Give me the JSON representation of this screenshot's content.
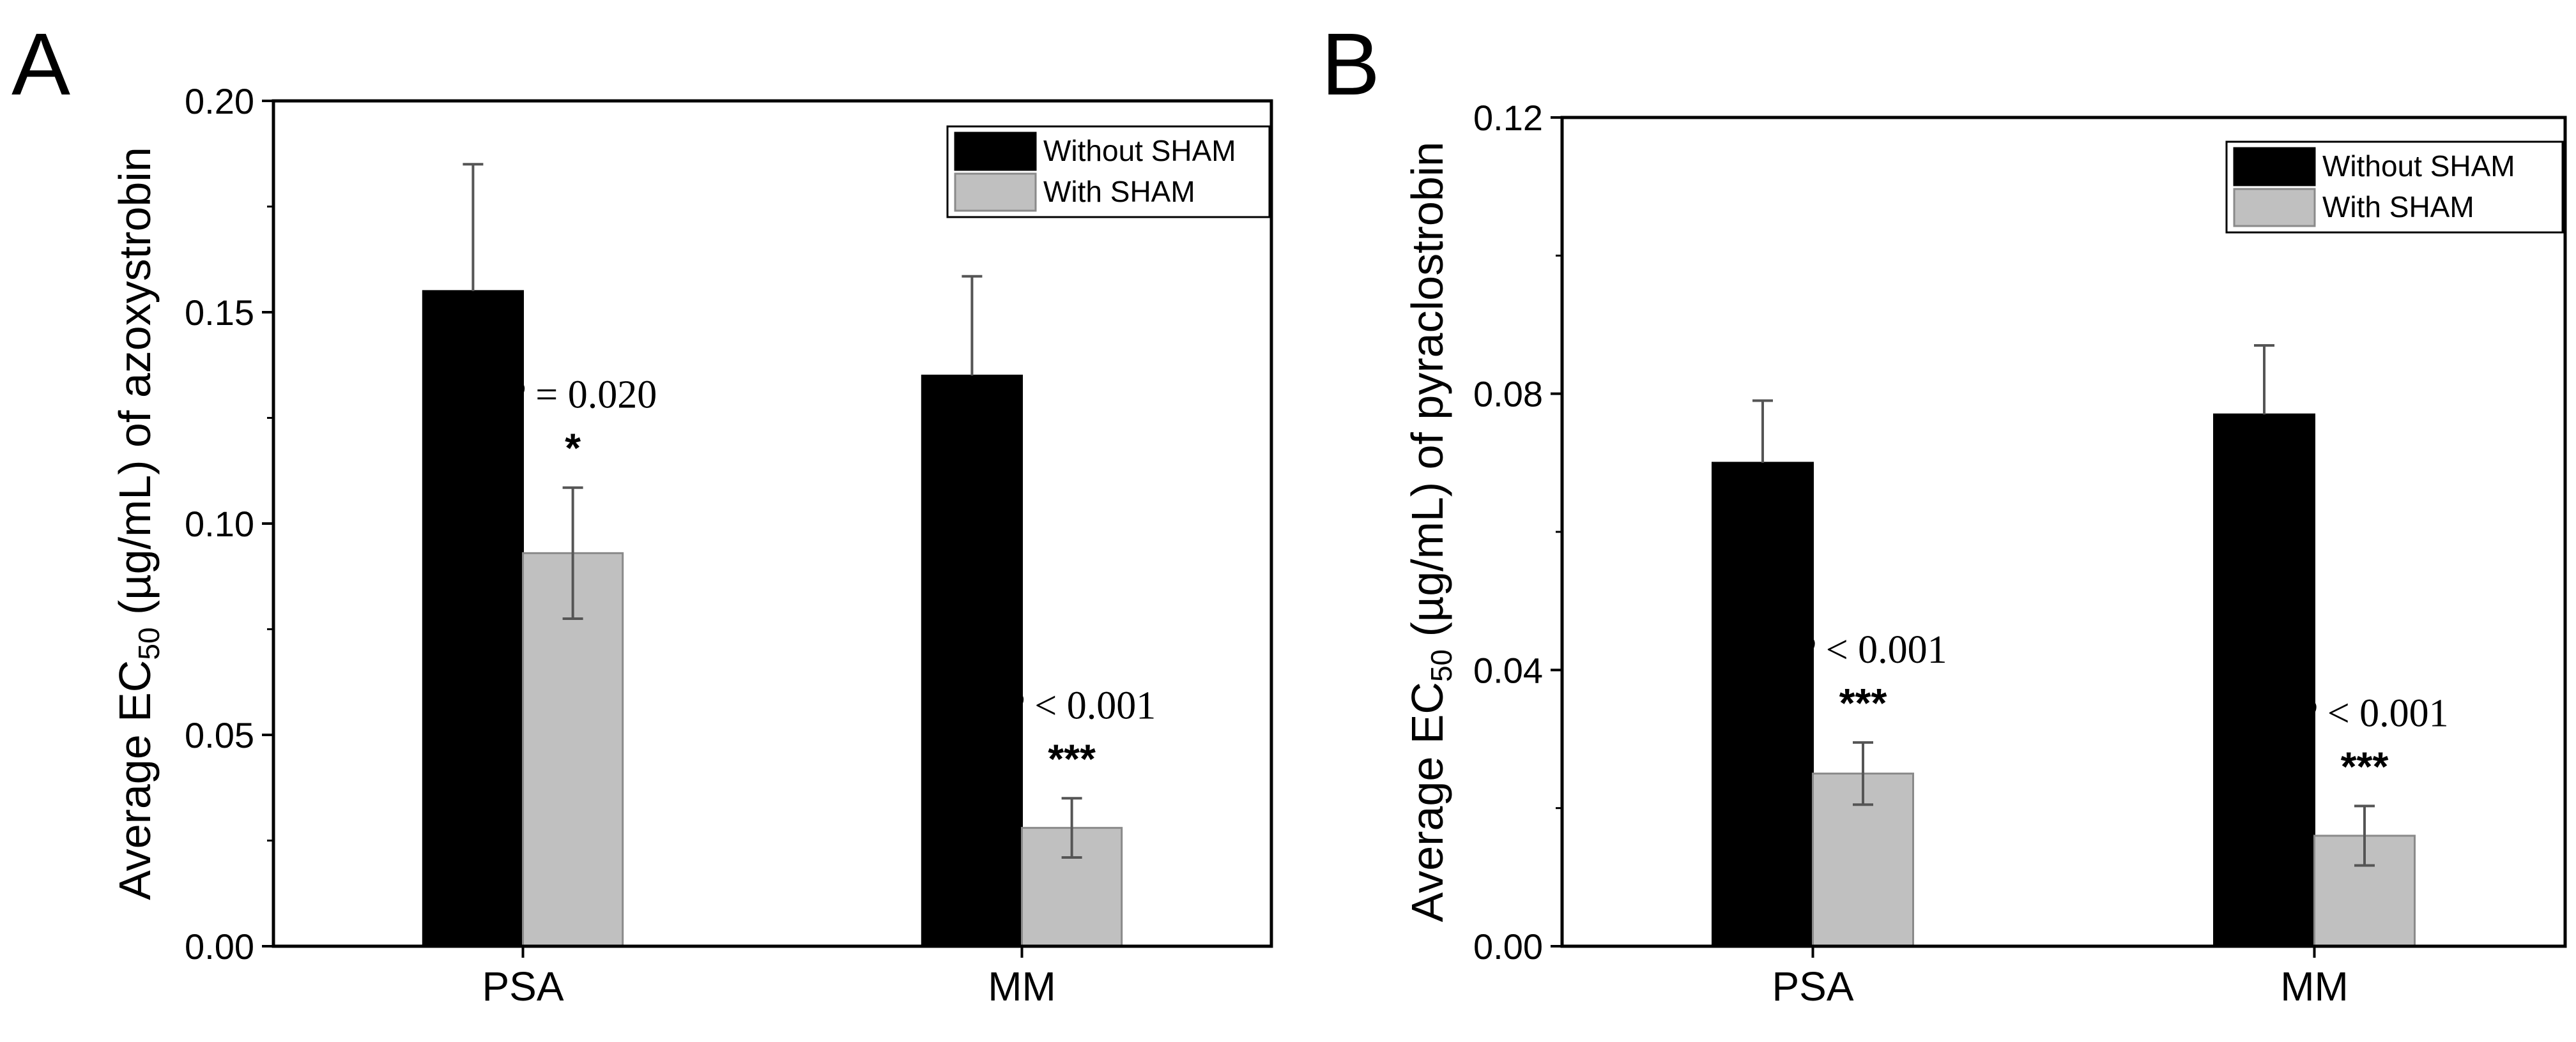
{
  "chart_data": [
    {
      "type": "bar",
      "panel": "A",
      "title": "",
      "xlabel": "",
      "ylabel_main": "Average EC",
      "ylabel_sub": "50",
      "ylabel_rest": " (µg/mL) of azoxystrobin",
      "ylim": [
        0,
        0.2
      ],
      "yticks": [
        0.0,
        0.05,
        0.1,
        0.15,
        0.2
      ],
      "ytick_labels": [
        "0.00",
        "0.05",
        "0.10",
        "0.15",
        "0.20"
      ],
      "categories": [
        "PSA",
        "MM"
      ],
      "series": [
        {
          "name": "Without SHAM",
          "color": "#000000",
          "values": [
            0.155,
            0.135
          ],
          "errors": [
            0.03,
            0.0235
          ]
        },
        {
          "name": "With SHAM",
          "color": "#c0c0c0",
          "values": [
            0.093,
            0.028
          ],
          "errors": [
            0.0155,
            0.007
          ]
        }
      ],
      "legend_position": "top-right",
      "annotations": [
        {
          "category_index": 0,
          "p_label": "P",
          "p_rest": " = 0.020",
          "stars": "*"
        },
        {
          "category_index": 1,
          "p_label": "P",
          "p_rest": " < 0.001",
          "stars": "***"
        }
      ]
    },
    {
      "type": "bar",
      "panel": "B",
      "title": "",
      "xlabel": "",
      "ylabel_main": "Average EC",
      "ylabel_sub": "50",
      "ylabel_rest": " (µg/mL) of pyraclostrobin",
      "ylim": [
        0,
        0.12
      ],
      "yticks": [
        0.0,
        0.04,
        0.08,
        0.12
      ],
      "ytick_labels": [
        "0.00",
        "0.04",
        "0.08",
        "0.12"
      ],
      "categories": [
        "PSA",
        "MM"
      ],
      "series": [
        {
          "name": "Without SHAM",
          "color": "#000000",
          "values": [
            0.07,
            0.077
          ],
          "errors": [
            0.009,
            0.01
          ]
        },
        {
          "name": "With SHAM",
          "color": "#c0c0c0",
          "values": [
            0.025,
            0.016
          ],
          "errors": [
            0.0045,
            0.0043
          ]
        }
      ],
      "legend_position": "top-right",
      "annotations": [
        {
          "category_index": 0,
          "p_label": "P",
          "p_rest": " < 0.001",
          "stars": "***"
        },
        {
          "category_index": 1,
          "p_label": "P",
          "p_rest": " < 0.001",
          "stars": "***"
        }
      ]
    }
  ]
}
